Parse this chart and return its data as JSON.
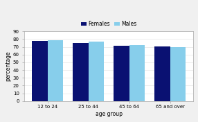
{
  "categories": [
    "12 to 24",
    "25 to 44",
    "45 to 64",
    "65 and over"
  ],
  "females": [
    78,
    75,
    71.5,
    70.5
  ],
  "males": [
    78.5,
    76.5,
    72.5,
    70
  ],
  "bar_color_females": "#0a1172",
  "bar_color_males": "#87ceeb",
  "title": "",
  "xlabel": "age group",
  "ylabel": "percentage",
  "ylim": [
    0,
    90
  ],
  "yticks": [
    0,
    10,
    20,
    30,
    40,
    50,
    60,
    70,
    80,
    90
  ],
  "legend_labels": [
    "Females",
    "Males"
  ],
  "bar_width": 0.38,
  "figure_facecolor": "#f0f0f0",
  "axes_facecolor": "#ffffff"
}
